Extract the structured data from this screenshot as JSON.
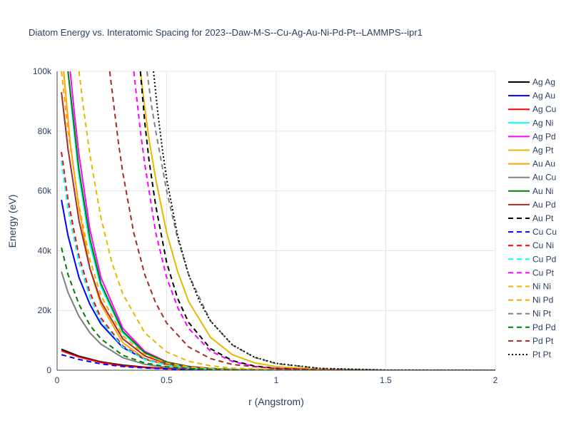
{
  "chart_data": {
    "type": "line",
    "title": "Diatom Energy vs. Interatomic Spacing for 2023--Daw-M-S--Cu-Ag-Au-Ni-Pd-Pt--LAMMPS--ipr1",
    "xlabel": "r (Angstrom)",
    "ylabel": "Energy (eV)",
    "xlim": [
      0,
      2
    ],
    "ylim": [
      0,
      100000
    ],
    "x_ticks": [
      0,
      0.5,
      1,
      1.5,
      2
    ],
    "x_tick_labels": [
      "0",
      "0.5",
      "1",
      "1.5",
      "2"
    ],
    "y_ticks": [
      0,
      20000,
      40000,
      60000,
      80000,
      100000
    ],
    "y_tick_labels": [
      "0",
      "20k",
      "40k",
      "60k",
      "80k",
      "100k"
    ],
    "grid": true,
    "legend_position": "right",
    "series": [
      {
        "name": "Ag Ag",
        "color": "#000000",
        "dash": "solid",
        "x": [
          0.02,
          0.1,
          0.2,
          0.3,
          0.4,
          0.5,
          0.6,
          0.7,
          0.8,
          1.0,
          1.5,
          2.0
        ],
        "y": [
          7000,
          4700,
          2800,
          1700,
          1000,
          600,
          350,
          200,
          110,
          30,
          0,
          0
        ]
      },
      {
        "name": "Ag Au",
        "color": "#0000ff",
        "dash": "solid",
        "x": [
          0.02,
          0.05,
          0.1,
          0.15,
          0.2,
          0.3,
          0.4,
          0.5,
          0.6,
          0.7,
          0.8,
          1.0,
          1.5,
          2.0
        ],
        "y": [
          57000,
          45000,
          31000,
          22000,
          15500,
          7600,
          3700,
          1800,
          900,
          450,
          220,
          50,
          0,
          0
        ]
      },
      {
        "name": "Ag Cu",
        "color": "#ff0000",
        "dash": "solid",
        "x": [
          0.02,
          0.1,
          0.2,
          0.3,
          0.4,
          0.5,
          0.6,
          0.7,
          0.8,
          1.0,
          1.5,
          2.0
        ],
        "y": [
          6500,
          4400,
          2600,
          1500,
          900,
          520,
          300,
          170,
          95,
          25,
          0,
          0
        ]
      },
      {
        "name": "Ag Ni",
        "color": "#00ffff",
        "dash": "solid",
        "x": [
          0.05,
          0.08,
          0.1,
          0.15,
          0.2,
          0.3,
          0.4,
          0.5,
          0.6,
          0.7,
          0.8,
          1.0,
          1.5,
          2.0
        ],
        "y": [
          100000,
          78000,
          65000,
          42000,
          28000,
          12500,
          5700,
          2600,
          1200,
          560,
          260,
          55,
          0,
          0
        ]
      },
      {
        "name": "Ag Pd",
        "color": "#ff00ff",
        "dash": "solid",
        "x": [
          0.06,
          0.08,
          0.1,
          0.15,
          0.2,
          0.3,
          0.4,
          0.5,
          0.6,
          0.7,
          0.8,
          1.0,
          1.5,
          2.0
        ],
        "y": [
          100000,
          85000,
          72000,
          47000,
          31000,
          14000,
          6300,
          2800,
          1300,
          600,
          280,
          60,
          0,
          0
        ]
      },
      {
        "name": "Ag Pt",
        "color": "#e6b800",
        "dash": "solid",
        "x": [
          0.38,
          0.4,
          0.42,
          0.45,
          0.5,
          0.55,
          0.6,
          0.7,
          0.8,
          0.9,
          1.0,
          1.2,
          1.5,
          2.0
        ],
        "y": [
          100000,
          88000,
          77000,
          64000,
          46000,
          33000,
          23000,
          11000,
          5200,
          2500,
          1200,
          280,
          0,
          0
        ]
      },
      {
        "name": "Au Au",
        "color": "#ffa500",
        "dash": "solid",
        "x": [
          0.03,
          0.06,
          0.1,
          0.15,
          0.2,
          0.3,
          0.4,
          0.5,
          0.6,
          0.7,
          0.8,
          1.0,
          1.5,
          2.0
        ],
        "y": [
          100000,
          76000,
          54000,
          34000,
          22000,
          9200,
          3900,
          1700,
          750,
          330,
          150,
          30,
          0,
          0
        ]
      },
      {
        "name": "Au Cu",
        "color": "#808080",
        "dash": "solid",
        "x": [
          0.02,
          0.05,
          0.1,
          0.15,
          0.2,
          0.3,
          0.4,
          0.5,
          0.6,
          0.7,
          0.8,
          1.0,
          1.5,
          2.0
        ],
        "y": [
          33000,
          26000,
          18000,
          12500,
          8700,
          4200,
          2000,
          950,
          460,
          220,
          105,
          25,
          0,
          0
        ]
      },
      {
        "name": "Au Ni",
        "color": "#008000",
        "dash": "solid",
        "x": [
          0.05,
          0.08,
          0.1,
          0.15,
          0.2,
          0.3,
          0.4,
          0.5,
          0.6,
          0.7,
          0.8,
          1.0,
          1.5,
          2.0
        ],
        "y": [
          100000,
          80000,
          67000,
          44000,
          29000,
          13000,
          5900,
          2700,
          1250,
          580,
          270,
          58,
          0,
          0
        ]
      },
      {
        "name": "Au Pd",
        "color": "#a52a2a",
        "dash": "solid",
        "x": [
          0.02,
          0.05,
          0.1,
          0.15,
          0.2,
          0.3,
          0.4,
          0.5,
          0.6,
          0.7,
          0.8,
          1.0,
          1.5,
          2.0
        ],
        "y": [
          93000,
          74000,
          50000,
          34000,
          23000,
          10500,
          4800,
          2200,
          1000,
          470,
          220,
          48,
          0,
          0
        ]
      },
      {
        "name": "Au Pt",
        "color": "#000000",
        "dash": "dash",
        "x": [
          0.38,
          0.4,
          0.42,
          0.45,
          0.5,
          0.55,
          0.6,
          0.7,
          0.8,
          0.9,
          1.0,
          1.2,
          1.5,
          2.0
        ],
        "y": [
          100000,
          83000,
          70000,
          55000,
          36000,
          24000,
          16000,
          7200,
          3200,
          1400,
          620,
          120,
          0,
          0
        ]
      },
      {
        "name": "Cu Cu",
        "color": "#0000ff",
        "dash": "dash",
        "x": [
          0.02,
          0.1,
          0.2,
          0.3,
          0.4,
          0.5,
          0.6,
          0.7,
          0.8,
          1.0,
          1.5,
          2.0
        ],
        "y": [
          5200,
          3600,
          2100,
          1250,
          740,
          430,
          250,
          145,
          82,
          22,
          0,
          0
        ]
      },
      {
        "name": "Cu Ni",
        "color": "#ff0000",
        "dash": "dash",
        "x": [
          0.02,
          0.05,
          0.1,
          0.15,
          0.2,
          0.3,
          0.4,
          0.5,
          0.6,
          0.7,
          0.8,
          1.0,
          1.5,
          2.0
        ],
        "y": [
          73000,
          57000,
          38000,
          26000,
          17500,
          8100,
          3800,
          1800,
          850,
          400,
          190,
          42,
          0,
          0
        ]
      },
      {
        "name": "Cu Pd",
        "color": "#00ffff",
        "dash": "dash",
        "x": [
          0.02,
          0.05,
          0.1,
          0.15,
          0.2,
          0.3,
          0.4,
          0.5,
          0.6,
          0.7,
          0.8,
          1.0,
          1.5,
          2.0
        ],
        "y": [
          70000,
          54000,
          36000,
          24500,
          16500,
          7700,
          3600,
          1700,
          800,
          380,
          180,
          40,
          0,
          0
        ]
      },
      {
        "name": "Cu Pt",
        "color": "#ff00ff",
        "dash": "dash",
        "x": [
          0.35,
          0.38,
          0.4,
          0.45,
          0.5,
          0.55,
          0.6,
          0.7,
          0.8,
          0.9,
          1.0,
          1.2,
          1.5,
          2.0
        ],
        "y": [
          100000,
          80000,
          69000,
          46000,
          31000,
          21000,
          14000,
          6400,
          2900,
          1300,
          600,
          120,
          0,
          0
        ]
      },
      {
        "name": "Ni Ni",
        "color": "#e6b800",
        "dash": "dash",
        "x": [
          0.1,
          0.12,
          0.15,
          0.2,
          0.25,
          0.3,
          0.4,
          0.5,
          0.6,
          0.7,
          0.8,
          1.0,
          1.5,
          2.0
        ],
        "y": [
          100000,
          88000,
          72000,
          51000,
          36000,
          25500,
          12500,
          6100,
          3000,
          1450,
          700,
          160,
          0,
          0
        ]
      },
      {
        "name": "Ni Pd",
        "color": "#ffa500",
        "dash": "dash",
        "x": [
          0.02,
          0.05,
          0.1,
          0.15,
          0.2,
          0.3,
          0.4,
          0.5,
          0.6,
          0.7,
          0.8,
          1.0,
          1.5,
          2.0
        ],
        "y": [
          100000,
          80000,
          55000,
          37000,
          25000,
          11500,
          5300,
          2400,
          1100,
          520,
          240,
          52,
          0,
          0
        ]
      },
      {
        "name": "Ni Pt",
        "color": "#808080",
        "dash": "dash",
        "x": [
          0.41,
          0.43,
          0.45,
          0.48,
          0.5,
          0.55,
          0.6,
          0.7,
          0.8,
          0.9,
          1.0,
          1.2,
          1.5,
          2.0
        ],
        "y": [
          100000,
          89000,
          80000,
          68000,
          60000,
          44000,
          32000,
          16500,
          8400,
          4300,
          2200,
          570,
          0,
          0
        ]
      },
      {
        "name": "Pd Pd",
        "color": "#008000",
        "dash": "dash",
        "x": [
          0.02,
          0.05,
          0.1,
          0.15,
          0.2,
          0.3,
          0.4,
          0.5,
          0.6,
          0.7,
          0.8,
          1.0,
          1.5,
          2.0
        ],
        "y": [
          41000,
          32000,
          22000,
          15000,
          10500,
          5000,
          2400,
          1150,
          550,
          260,
          125,
          28,
          0,
          0
        ]
      },
      {
        "name": "Pd Pt",
        "color": "#a52a2a",
        "dash": "dash",
        "x": [
          0.24,
          0.26,
          0.28,
          0.3,
          0.35,
          0.4,
          0.45,
          0.5,
          0.6,
          0.7,
          0.8,
          1.0,
          1.2,
          1.5,
          2.0
        ],
        "y": [
          100000,
          88000,
          76000,
          66000,
          46000,
          32000,
          22500,
          15800,
          7800,
          3900,
          1900,
          470,
          120,
          0,
          0
        ]
      },
      {
        "name": "Pt Pt",
        "color": "#000000",
        "dash": "dot",
        "x": [
          0.44,
          0.46,
          0.48,
          0.5,
          0.55,
          0.6,
          0.65,
          0.7,
          0.8,
          0.9,
          1.0,
          1.2,
          1.5,
          2.0
        ],
        "y": [
          100000,
          86000,
          74000,
          64000,
          45000,
          32000,
          23000,
          16500,
          8500,
          4400,
          2300,
          620,
          80,
          0
        ]
      }
    ]
  }
}
